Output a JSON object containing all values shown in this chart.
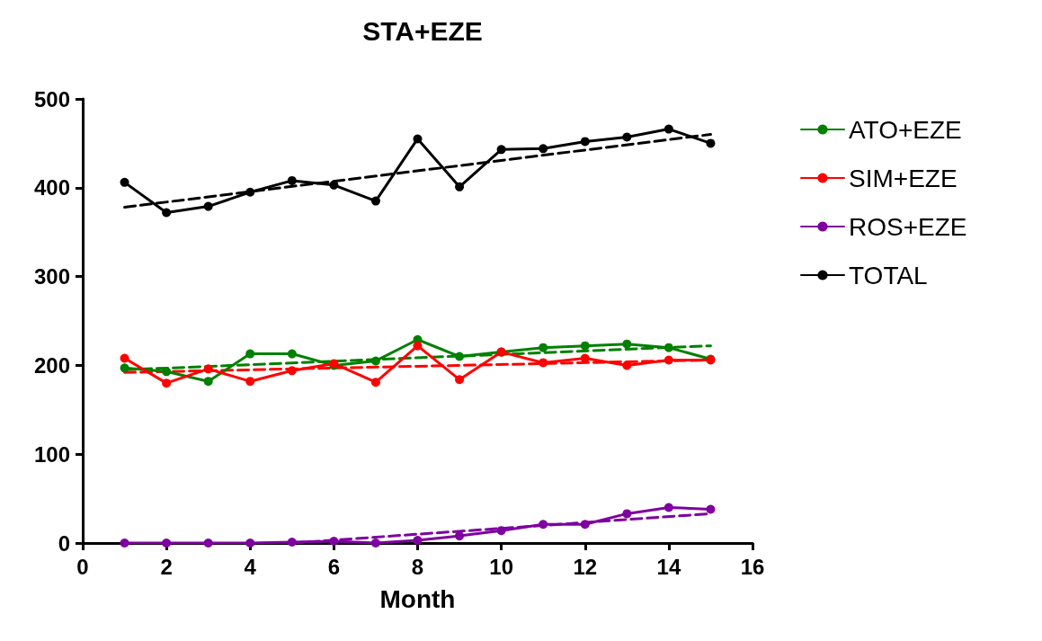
{
  "chart_data": {
    "type": "line",
    "title": "STA+EZE",
    "xlabel": "Month",
    "x": [
      1,
      2,
      3,
      4,
      5,
      6,
      7,
      8,
      9,
      10,
      11,
      12,
      13,
      14,
      15
    ],
    "xlim": [
      0,
      16
    ],
    "xticks": [
      0,
      2,
      4,
      6,
      8,
      10,
      12,
      14,
      16
    ],
    "ylim": [
      0,
      500
    ],
    "yticks": [
      0,
      100,
      200,
      300,
      400,
      500
    ],
    "grid": false,
    "legend": "right",
    "marker": "circle",
    "series": [
      {
        "name": "ATO+EZE",
        "color": "#008000",
        "values": [
          197,
          193,
          182,
          213,
          213,
          200,
          205,
          229,
          210,
          215,
          220,
          222,
          224,
          220,
          207
        ]
      },
      {
        "name": "SIM+EZE",
        "color": "#ff0000",
        "values": [
          208,
          180,
          196,
          182,
          194,
          202,
          181,
          222,
          184,
          215,
          203,
          208,
          200,
          206,
          206
        ]
      },
      {
        "name": "ROS+EZE",
        "color": "#7f00a0",
        "values": [
          0,
          0,
          0,
          0,
          1,
          2,
          0,
          3,
          8,
          14,
          21,
          21,
          33,
          40,
          38
        ]
      },
      {
        "name": "TOTAL",
        "color": "#000000",
        "values": [
          406,
          372,
          379,
          395,
          408,
          403,
          385,
          455,
          401,
          443,
          444,
          452,
          457,
          466,
          450
        ]
      },
      {
        "color": "#008000",
        "x": [
          1,
          15
        ],
        "values": [
          195,
          222
        ],
        "line_style": "dashed",
        "marker": "none"
      },
      {
        "color": "#ff0000",
        "x": [
          1,
          15
        ],
        "values": [
          192,
          206
        ],
        "line_style": "dashed",
        "marker": "none"
      },
      {
        "color": "#7f00a0",
        "x": [
          5,
          15
        ],
        "values": [
          0,
          33
        ],
        "line_style": "dashed",
        "marker": "none"
      },
      {
        "color": "#000000",
        "x": [
          1,
          15
        ],
        "values": [
          378,
          460
        ],
        "line_style": "dashed",
        "marker": "none"
      }
    ]
  }
}
